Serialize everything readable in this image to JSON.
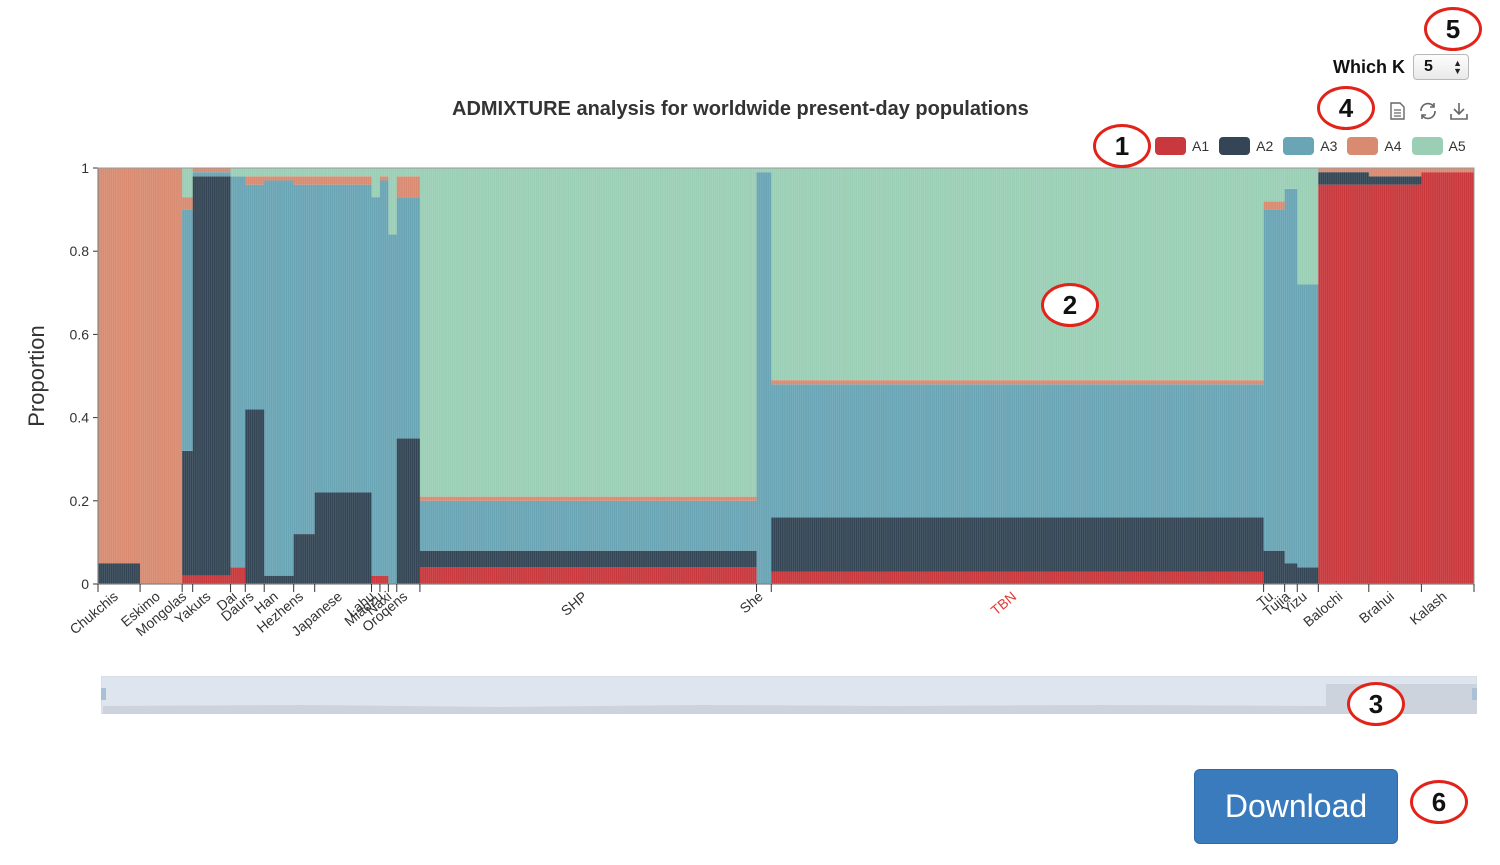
{
  "title": "ADMIXTURE analysis for worldwide present-day populations",
  "which_k": {
    "label": "Which K",
    "value": "5"
  },
  "toolbox": [
    "data-view-icon",
    "restore-icon",
    "save-as-image-icon"
  ],
  "download_label": "Download",
  "markers": [
    "1",
    "2",
    "3",
    "4",
    "5",
    "6"
  ],
  "colors": {
    "A1": "#c9383c",
    "A2": "#344655",
    "A3": "#69a5b5",
    "A4": "#d98b71",
    "A5": "#9acfb5",
    "highlight": "#e53935"
  },
  "zoom": {
    "start": 0,
    "end": 100
  },
  "chart_data": {
    "type": "bar",
    "stacked": true,
    "ylabel": "Proportion",
    "ylim": [
      0,
      1
    ],
    "yticks": [
      0,
      0.2,
      0.4,
      0.6,
      0.8,
      1
    ],
    "legend": [
      "A1",
      "A2",
      "A3",
      "A4",
      "A5"
    ],
    "legend_position": "top-right",
    "grid": true,
    "highlighted_population": "TBN",
    "populations": [
      {
        "name": "Chukchis",
        "n": 20,
        "values": [
          0.0,
          0.05,
          0.0,
          0.95,
          0.0
        ]
      },
      {
        "name": "Eskimo",
        "n": 20,
        "values": [
          0.0,
          0.0,
          0.0,
          1.0,
          0.0
        ]
      },
      {
        "name": "Mongolas",
        "n": 5,
        "values": [
          0.02,
          0.3,
          0.58,
          0.03,
          0.07
        ]
      },
      {
        "name": "Yakuts",
        "n": 18,
        "values": [
          0.02,
          0.96,
          0.01,
          0.01,
          0.0
        ]
      },
      {
        "name": "Dai",
        "n": 7,
        "values": [
          0.04,
          0.0,
          0.94,
          0.0,
          0.02
        ]
      },
      {
        "name": "Daurs",
        "n": 9,
        "values": [
          0.0,
          0.42,
          0.54,
          0.02,
          0.02
        ]
      },
      {
        "name": "Han",
        "n": 14,
        "values": [
          0.0,
          0.02,
          0.95,
          0.01,
          0.02
        ]
      },
      {
        "name": "Hezhens",
        "n": 10,
        "values": [
          0.0,
          0.12,
          0.84,
          0.02,
          0.02
        ]
      },
      {
        "name": "Japanese",
        "n": 27,
        "values": [
          0.0,
          0.22,
          0.74,
          0.02,
          0.02
        ]
      },
      {
        "name": "Lahu",
        "n": 4,
        "values": [
          0.02,
          0.0,
          0.91,
          0.0,
          0.07
        ]
      },
      {
        "name": "Miaozu",
        "n": 4,
        "values": [
          0.02,
          0.0,
          0.95,
          0.01,
          0.02
        ]
      },
      {
        "name": "Naxi",
        "n": 4,
        "values": [
          0.0,
          0.0,
          0.84,
          0.0,
          0.16
        ]
      },
      {
        "name": "Oroqens",
        "n": 11,
        "values": [
          0.0,
          0.35,
          0.58,
          0.05,
          0.02
        ]
      },
      {
        "name": "SHP",
        "n": 160,
        "values": [
          0.04,
          0.04,
          0.12,
          0.01,
          0.79
        ]
      },
      {
        "name": "She",
        "n": 7,
        "values": [
          0.0,
          0.0,
          0.99,
          0.0,
          0.01
        ]
      },
      {
        "name": "TBN",
        "n": 234,
        "values": [
          0.03,
          0.13,
          0.32,
          0.01,
          0.51
        ]
      },
      {
        "name": "Tu",
        "n": 10,
        "values": [
          0.0,
          0.08,
          0.82,
          0.02,
          0.08
        ]
      },
      {
        "name": "Tujia",
        "n": 6,
        "values": [
          0.0,
          0.05,
          0.9,
          0.0,
          0.05
        ]
      },
      {
        "name": "Yizu",
        "n": 10,
        "values": [
          0.0,
          0.04,
          0.68,
          0.0,
          0.28
        ]
      },
      {
        "name": "Balochi",
        "n": 24,
        "values": [
          0.96,
          0.03,
          0.0,
          0.01,
          0.0
        ]
      },
      {
        "name": "Brahui",
        "n": 25,
        "values": [
          0.96,
          0.02,
          0.0,
          0.02,
          0.0
        ]
      },
      {
        "name": "Kalash",
        "n": 25,
        "values": [
          0.99,
          0.0,
          0.0,
          0.01,
          0.0
        ]
      }
    ]
  }
}
